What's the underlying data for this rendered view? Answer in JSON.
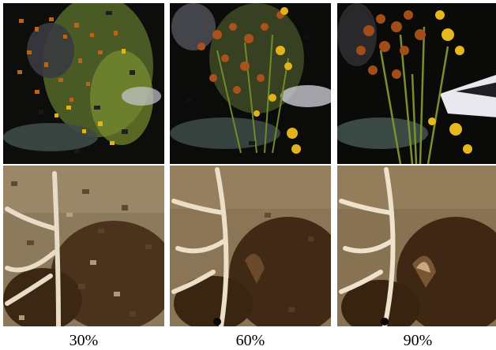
{
  "figure": {
    "columns": [
      {
        "label": "30%"
      },
      {
        "label": "60%"
      },
      {
        "label": "90%"
      }
    ],
    "rows": [
      {
        "subject": "flowers-and-butterfly"
      },
      {
        "subject": "elk-with-antlers"
      }
    ]
  },
  "colors": {
    "background": "#ffffff",
    "flower_dark": "#0c0c0a",
    "flower_green": "#6f8a2a",
    "flower_orange": "#b5651d",
    "flower_yellow": "#e2b21c",
    "elk_field": "#8a7556",
    "elk_fur": "#3c2614",
    "antler": "#e8dcc6"
  }
}
